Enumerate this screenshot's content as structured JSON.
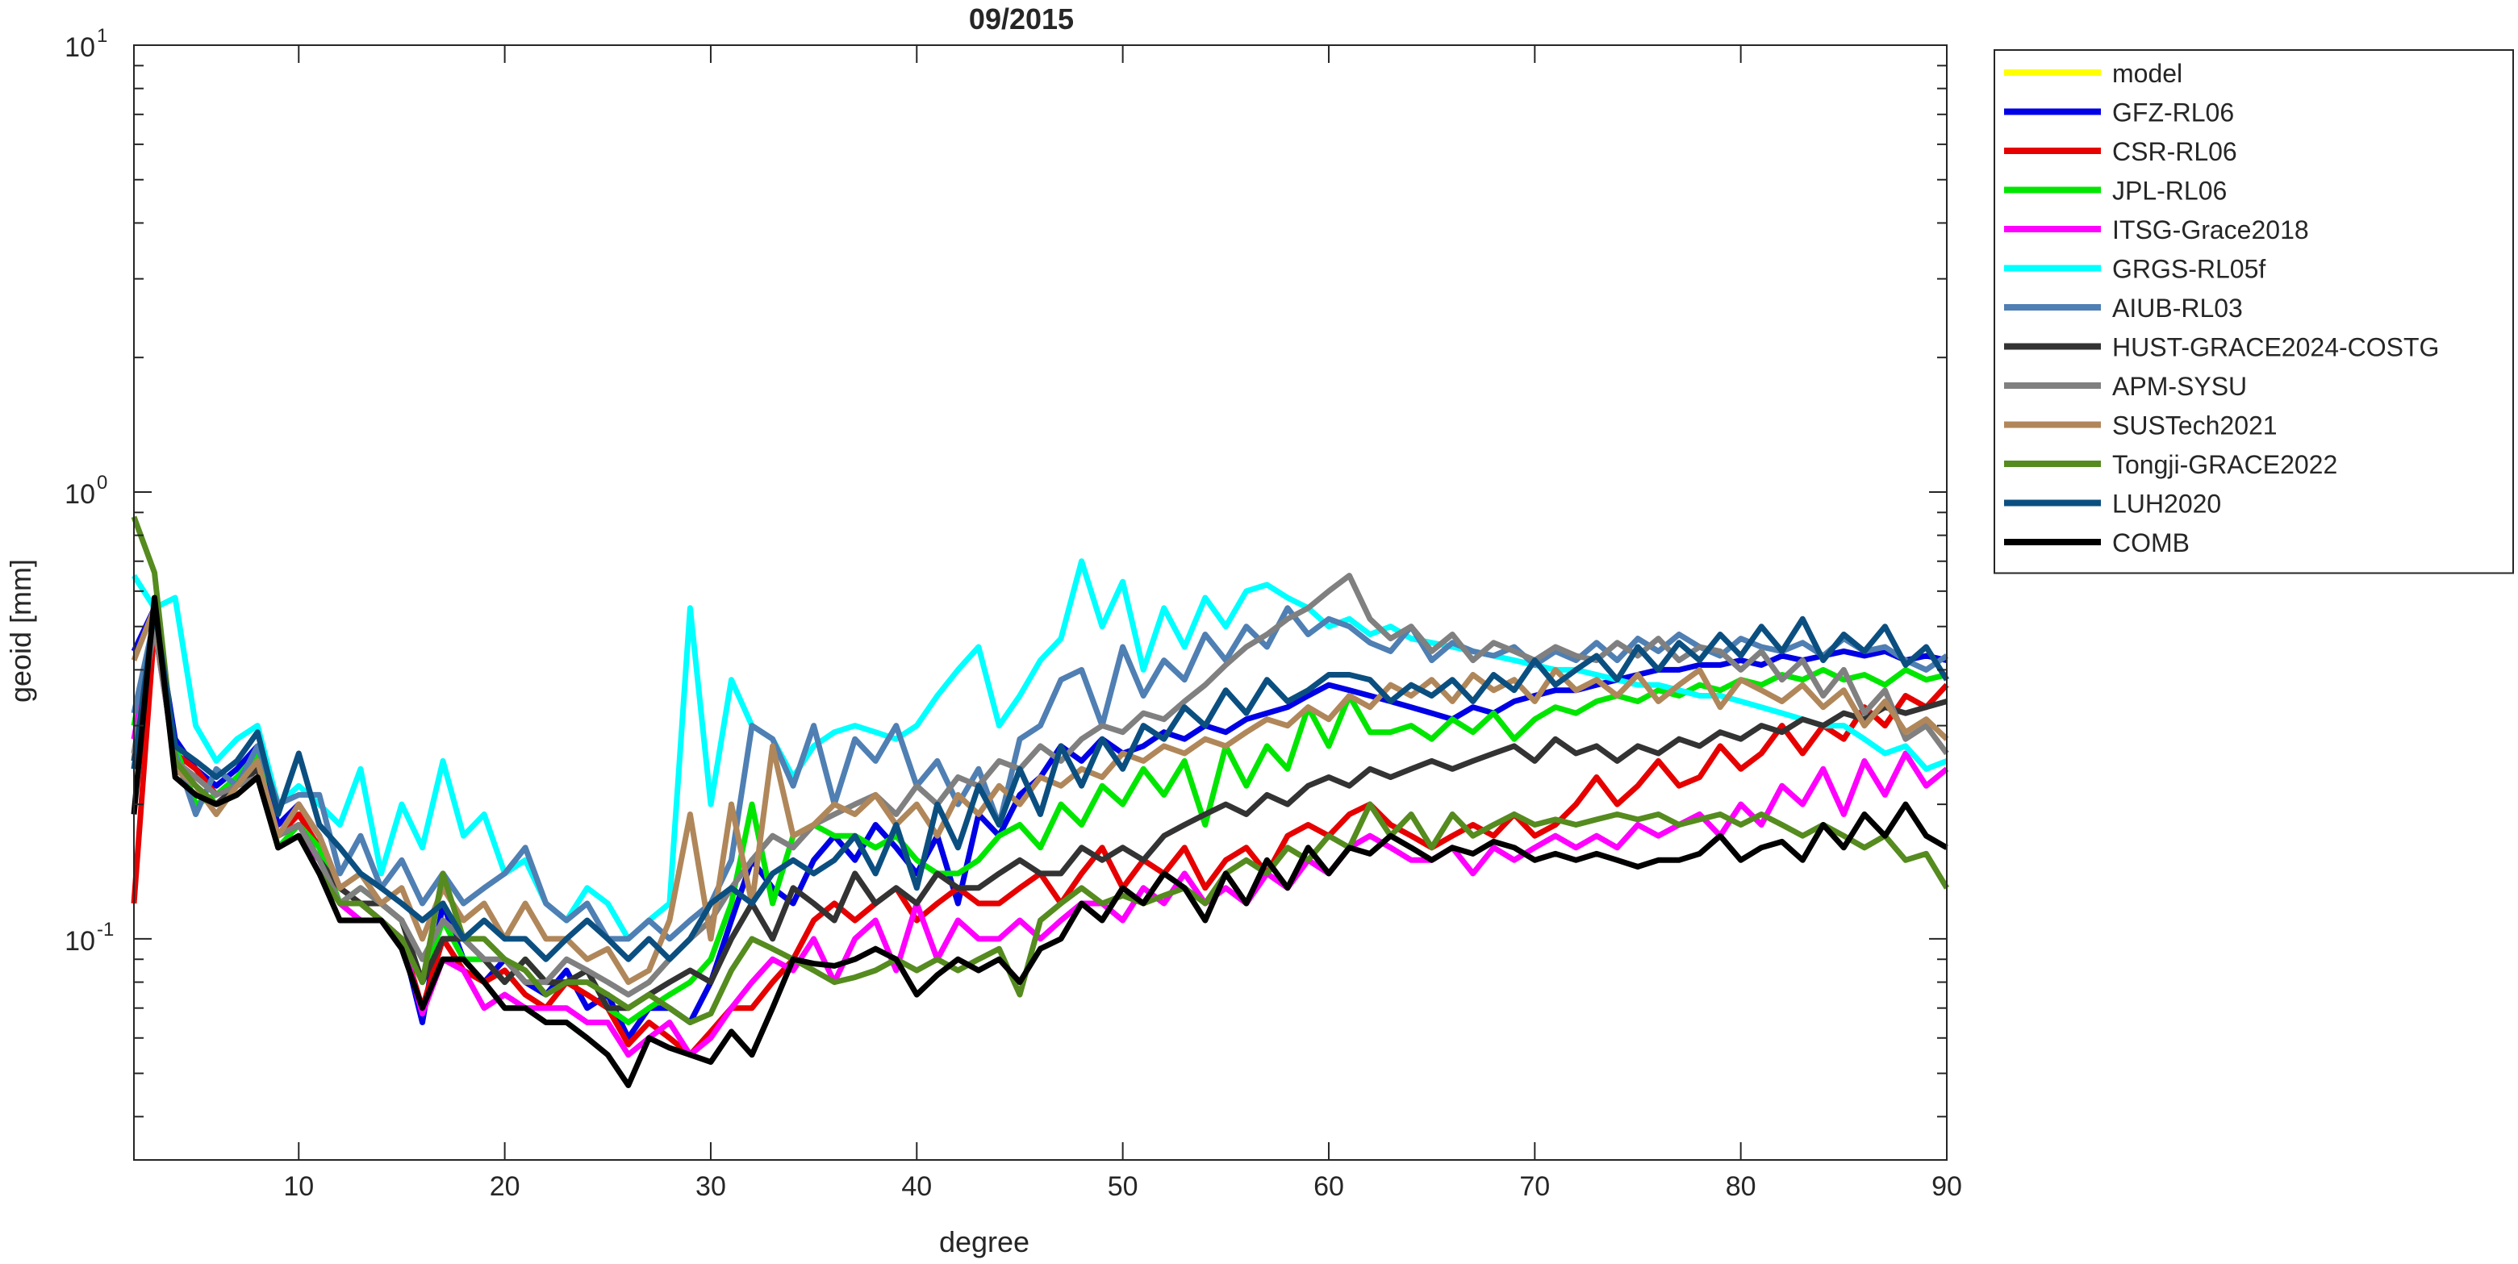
{
  "chart_data": {
    "type": "line",
    "title": "09/2015",
    "xlabel": "degree",
    "ylabel": "geoid [mm]",
    "xlim": [
      2,
      90
    ],
    "ylim": [
      0.032,
      10
    ],
    "yscale": "log",
    "xticks": [
      10,
      20,
      30,
      40,
      50,
      60,
      70,
      80,
      90
    ],
    "yticks": [
      {
        "value": 0.1,
        "base": "10",
        "exp": "-1"
      },
      {
        "value": 1,
        "base": "10",
        "exp": "0"
      },
      {
        "value": 10,
        "base": "10",
        "exp": "1"
      }
    ],
    "grid": false,
    "legend_position": "outside-right-top",
    "x_start": 2,
    "series": [
      {
        "name": "model",
        "color": "#ffff00",
        "values": []
      },
      {
        "name": "GFZ-RL06",
        "color": "#0000e6",
        "values": [
          0.44,
          0.55,
          0.28,
          0.24,
          0.22,
          0.24,
          0.27,
          0.18,
          0.2,
          0.17,
          0.13,
          0.12,
          0.11,
          0.1,
          0.065,
          0.12,
          0.09,
          0.08,
          0.09,
          0.08,
          0.075,
          0.085,
          0.07,
          0.075,
          0.06,
          0.07,
          0.07,
          0.065,
          0.08,
          0.11,
          0.15,
          0.13,
          0.12,
          0.15,
          0.17,
          0.15,
          0.18,
          0.16,
          0.14,
          0.17,
          0.12,
          0.19,
          0.17,
          0.21,
          0.23,
          0.27,
          0.25,
          0.28,
          0.26,
          0.27,
          0.29,
          0.28,
          0.3,
          0.29,
          0.31,
          0.32,
          0.33,
          0.35,
          0.37,
          0.36,
          0.35,
          0.34,
          0.33,
          0.32,
          0.31,
          0.33,
          0.32,
          0.34,
          0.35,
          0.36,
          0.36,
          0.37,
          0.38,
          0.39,
          0.4,
          0.4,
          0.41,
          0.41,
          0.42,
          0.41,
          0.43,
          0.42,
          0.43,
          0.44,
          0.43,
          0.44,
          0.42,
          0.43,
          0.42
        ]
      },
      {
        "name": "CSR-RL06",
        "color": "#e60000",
        "values": [
          0.12,
          0.5,
          0.26,
          0.24,
          0.21,
          0.23,
          0.25,
          0.17,
          0.19,
          0.16,
          0.13,
          0.12,
          0.11,
          0.1,
          0.07,
          0.1,
          0.085,
          0.08,
          0.085,
          0.075,
          0.07,
          0.08,
          0.075,
          0.07,
          0.058,
          0.065,
          0.06,
          0.055,
          0.062,
          0.07,
          0.07,
          0.08,
          0.09,
          0.11,
          0.12,
          0.11,
          0.12,
          0.13,
          0.11,
          0.12,
          0.13,
          0.12,
          0.12,
          0.13,
          0.14,
          0.12,
          0.14,
          0.16,
          0.13,
          0.15,
          0.14,
          0.16,
          0.13,
          0.15,
          0.16,
          0.14,
          0.17,
          0.18,
          0.17,
          0.19,
          0.2,
          0.18,
          0.17,
          0.16,
          0.17,
          0.18,
          0.17,
          0.19,
          0.17,
          0.18,
          0.2,
          0.23,
          0.2,
          0.22,
          0.25,
          0.22,
          0.23,
          0.27,
          0.24,
          0.26,
          0.3,
          0.26,
          0.3,
          0.28,
          0.33,
          0.3,
          0.35,
          0.33,
          0.37
        ]
      },
      {
        "name": "JPL-RL06",
        "color": "#00e600",
        "values": [
          0.3,
          0.52,
          0.27,
          0.2,
          0.21,
          0.23,
          0.26,
          0.16,
          0.18,
          0.16,
          0.12,
          0.13,
          0.12,
          0.11,
          0.08,
          0.11,
          0.09,
          0.09,
          0.08,
          0.09,
          0.08,
          0.08,
          0.085,
          0.07,
          0.065,
          0.07,
          0.075,
          0.08,
          0.09,
          0.12,
          0.2,
          0.12,
          0.17,
          0.18,
          0.17,
          0.17,
          0.16,
          0.17,
          0.15,
          0.14,
          0.14,
          0.15,
          0.17,
          0.18,
          0.16,
          0.2,
          0.18,
          0.22,
          0.2,
          0.24,
          0.21,
          0.25,
          0.18,
          0.27,
          0.22,
          0.27,
          0.24,
          0.33,
          0.27,
          0.35,
          0.29,
          0.29,
          0.3,
          0.28,
          0.31,
          0.29,
          0.32,
          0.28,
          0.31,
          0.33,
          0.32,
          0.34,
          0.35,
          0.34,
          0.36,
          0.35,
          0.37,
          0.36,
          0.38,
          0.37,
          0.39,
          0.38,
          0.4,
          0.38,
          0.39,
          0.37,
          0.4,
          0.38,
          0.39
        ]
      },
      {
        "name": "ITSG-Grace2018",
        "color": "#ff00ff",
        "values": [
          0.28,
          0.5,
          0.25,
          0.22,
          0.2,
          0.22,
          0.24,
          0.16,
          0.17,
          0.15,
          0.12,
          0.11,
          0.11,
          0.1,
          0.068,
          0.09,
          0.085,
          0.07,
          0.075,
          0.07,
          0.07,
          0.07,
          0.065,
          0.065,
          0.055,
          0.06,
          0.065,
          0.055,
          0.06,
          0.07,
          0.08,
          0.09,
          0.085,
          0.1,
          0.08,
          0.1,
          0.11,
          0.085,
          0.12,
          0.09,
          0.11,
          0.1,
          0.1,
          0.11,
          0.1,
          0.11,
          0.12,
          0.12,
          0.11,
          0.13,
          0.12,
          0.14,
          0.12,
          0.13,
          0.12,
          0.14,
          0.13,
          0.15,
          0.14,
          0.16,
          0.17,
          0.16,
          0.15,
          0.15,
          0.16,
          0.14,
          0.16,
          0.15,
          0.16,
          0.17,
          0.16,
          0.17,
          0.16,
          0.18,
          0.17,
          0.18,
          0.19,
          0.17,
          0.2,
          0.18,
          0.22,
          0.2,
          0.24,
          0.19,
          0.25,
          0.21,
          0.26,
          0.22,
          0.24
        ]
      },
      {
        "name": "GRGS-RL05f",
        "color": "#00ffff",
        "values": [
          0.65,
          0.55,
          0.58,
          0.3,
          0.25,
          0.28,
          0.3,
          0.2,
          0.22,
          0.2,
          0.18,
          0.24,
          0.14,
          0.2,
          0.16,
          0.25,
          0.17,
          0.19,
          0.14,
          0.15,
          0.12,
          0.11,
          0.13,
          0.12,
          0.1,
          0.11,
          0.12,
          0.55,
          0.2,
          0.38,
          0.3,
          0.28,
          0.23,
          0.27,
          0.29,
          0.3,
          0.29,
          0.28,
          0.3,
          0.35,
          0.4,
          0.45,
          0.3,
          0.35,
          0.42,
          0.47,
          0.7,
          0.5,
          0.63,
          0.4,
          0.55,
          0.45,
          0.58,
          0.5,
          0.6,
          0.62,
          0.58,
          0.55,
          0.5,
          0.52,
          0.48,
          0.5,
          0.47,
          0.46,
          0.45,
          0.44,
          0.43,
          0.42,
          0.41,
          0.4,
          0.4,
          0.39,
          0.38,
          0.37,
          0.37,
          0.36,
          0.35,
          0.35,
          0.34,
          0.33,
          0.32,
          0.31,
          0.3,
          0.3,
          0.28,
          0.26,
          0.27,
          0.24,
          0.25
        ]
      },
      {
        "name": "AIUB-RL03",
        "color": "#4f7fb3",
        "values": [
          0.32,
          0.52,
          0.26,
          0.19,
          0.24,
          0.22,
          0.27,
          0.2,
          0.21,
          0.21,
          0.14,
          0.17,
          0.13,
          0.15,
          0.12,
          0.14,
          0.12,
          0.13,
          0.14,
          0.16,
          0.12,
          0.11,
          0.12,
          0.1,
          0.1,
          0.11,
          0.1,
          0.11,
          0.12,
          0.15,
          0.3,
          0.28,
          0.22,
          0.3,
          0.2,
          0.28,
          0.25,
          0.3,
          0.22,
          0.25,
          0.2,
          0.24,
          0.18,
          0.28,
          0.3,
          0.38,
          0.4,
          0.3,
          0.45,
          0.35,
          0.42,
          0.38,
          0.48,
          0.42,
          0.5,
          0.45,
          0.55,
          0.48,
          0.52,
          0.5,
          0.46,
          0.44,
          0.5,
          0.42,
          0.46,
          0.44,
          0.43,
          0.45,
          0.41,
          0.44,
          0.42,
          0.46,
          0.42,
          0.47,
          0.44,
          0.48,
          0.45,
          0.43,
          0.47,
          0.45,
          0.44,
          0.46,
          0.43,
          0.47,
          0.44,
          0.45,
          0.42,
          0.4,
          0.43
        ]
      },
      {
        "name": "HUST-GRACE2024-COSTG",
        "color": "#333333",
        "values": [
          0.25,
          0.53,
          0.24,
          0.22,
          0.2,
          0.22,
          0.24,
          0.17,
          0.18,
          0.15,
          0.13,
          0.12,
          0.12,
          0.11,
          0.08,
          0.1,
          0.1,
          0.09,
          0.08,
          0.09,
          0.08,
          0.08,
          0.085,
          0.07,
          0.07,
          0.075,
          0.08,
          0.085,
          0.08,
          0.1,
          0.12,
          0.1,
          0.13,
          0.12,
          0.11,
          0.14,
          0.12,
          0.13,
          0.12,
          0.14,
          0.13,
          0.13,
          0.14,
          0.15,
          0.14,
          0.14,
          0.16,
          0.15,
          0.16,
          0.15,
          0.17,
          0.18,
          0.19,
          0.2,
          0.19,
          0.21,
          0.2,
          0.22,
          0.23,
          0.22,
          0.24,
          0.23,
          0.24,
          0.25,
          0.24,
          0.25,
          0.26,
          0.27,
          0.25,
          0.28,
          0.26,
          0.27,
          0.25,
          0.27,
          0.26,
          0.28,
          0.27,
          0.29,
          0.28,
          0.3,
          0.29,
          0.31,
          0.3,
          0.32,
          0.31,
          0.33,
          0.32,
          0.33,
          0.34
        ]
      },
      {
        "name": "APM-SYSU",
        "color": "#808080",
        "values": [
          0.26,
          0.5,
          0.25,
          0.23,
          0.21,
          0.22,
          0.23,
          0.17,
          0.18,
          0.15,
          0.12,
          0.13,
          0.12,
          0.11,
          0.09,
          0.11,
          0.1,
          0.09,
          0.09,
          0.08,
          0.08,
          0.09,
          0.085,
          0.08,
          0.075,
          0.08,
          0.09,
          0.1,
          0.11,
          0.13,
          0.15,
          0.17,
          0.16,
          0.18,
          0.19,
          0.2,
          0.21,
          0.19,
          0.22,
          0.2,
          0.23,
          0.22,
          0.25,
          0.24,
          0.27,
          0.25,
          0.28,
          0.3,
          0.29,
          0.32,
          0.31,
          0.34,
          0.37,
          0.41,
          0.45,
          0.48,
          0.52,
          0.55,
          0.6,
          0.65,
          0.52,
          0.47,
          0.5,
          0.44,
          0.48,
          0.42,
          0.46,
          0.44,
          0.42,
          0.45,
          0.43,
          0.42,
          0.46,
          0.43,
          0.47,
          0.42,
          0.45,
          0.44,
          0.4,
          0.44,
          0.38,
          0.42,
          0.35,
          0.4,
          0.32,
          0.36,
          0.28,
          0.3,
          0.26
        ]
      },
      {
        "name": "SUSTech2021",
        "color": "#b0875a",
        "values": [
          0.42,
          0.55,
          0.24,
          0.22,
          0.19,
          0.22,
          0.25,
          0.17,
          0.2,
          0.17,
          0.13,
          0.14,
          0.12,
          0.13,
          0.1,
          0.13,
          0.11,
          0.12,
          0.1,
          0.12,
          0.1,
          0.1,
          0.09,
          0.095,
          0.08,
          0.085,
          0.11,
          0.19,
          0.1,
          0.2,
          0.12,
          0.27,
          0.17,
          0.18,
          0.2,
          0.19,
          0.21,
          0.18,
          0.2,
          0.17,
          0.21,
          0.19,
          0.22,
          0.2,
          0.23,
          0.22,
          0.24,
          0.23,
          0.26,
          0.25,
          0.27,
          0.26,
          0.28,
          0.27,
          0.29,
          0.31,
          0.3,
          0.33,
          0.31,
          0.35,
          0.33,
          0.37,
          0.35,
          0.38,
          0.34,
          0.39,
          0.36,
          0.38,
          0.34,
          0.4,
          0.36,
          0.38,
          0.35,
          0.39,
          0.34,
          0.37,
          0.4,
          0.33,
          0.38,
          0.36,
          0.34,
          0.37,
          0.33,
          0.36,
          0.3,
          0.34,
          0.29,
          0.31,
          0.28
        ]
      },
      {
        "name": "Tongji-GRACE2022",
        "color": "#558b1f",
        "values": [
          0.88,
          0.66,
          0.25,
          0.22,
          0.2,
          0.21,
          0.23,
          0.16,
          0.17,
          0.14,
          0.12,
          0.12,
          0.11,
          0.1,
          0.08,
          0.14,
          0.1,
          0.1,
          0.09,
          0.085,
          0.075,
          0.08,
          0.08,
          0.075,
          0.07,
          0.075,
          0.07,
          0.065,
          0.068,
          0.085,
          0.1,
          0.095,
          0.09,
          0.085,
          0.08,
          0.082,
          0.085,
          0.09,
          0.085,
          0.09,
          0.085,
          0.09,
          0.095,
          0.075,
          0.11,
          0.12,
          0.13,
          0.12,
          0.125,
          0.12,
          0.125,
          0.13,
          0.12,
          0.14,
          0.15,
          0.14,
          0.16,
          0.15,
          0.17,
          0.16,
          0.2,
          0.17,
          0.19,
          0.16,
          0.19,
          0.17,
          0.18,
          0.19,
          0.18,
          0.185,
          0.18,
          0.185,
          0.19,
          0.185,
          0.19,
          0.18,
          0.185,
          0.19,
          0.18,
          0.19,
          0.18,
          0.17,
          0.18,
          0.17,
          0.16,
          0.17,
          0.15,
          0.155,
          0.13
        ]
      },
      {
        "name": "LUH2020",
        "color": "#0b4f80",
        "values": [
          0.24,
          0.55,
          0.27,
          0.25,
          0.23,
          0.25,
          0.29,
          0.19,
          0.26,
          0.18,
          0.16,
          0.14,
          0.13,
          0.12,
          0.11,
          0.12,
          0.1,
          0.11,
          0.1,
          0.1,
          0.09,
          0.1,
          0.11,
          0.1,
          0.09,
          0.1,
          0.09,
          0.1,
          0.12,
          0.13,
          0.12,
          0.14,
          0.15,
          0.14,
          0.15,
          0.17,
          0.14,
          0.18,
          0.13,
          0.2,
          0.16,
          0.22,
          0.18,
          0.24,
          0.19,
          0.27,
          0.22,
          0.28,
          0.24,
          0.3,
          0.28,
          0.33,
          0.3,
          0.36,
          0.32,
          0.38,
          0.34,
          0.36,
          0.39,
          0.39,
          0.38,
          0.34,
          0.37,
          0.35,
          0.38,
          0.34,
          0.39,
          0.36,
          0.42,
          0.37,
          0.4,
          0.43,
          0.38,
          0.45,
          0.4,
          0.46,
          0.42,
          0.48,
          0.43,
          0.5,
          0.44,
          0.52,
          0.42,
          0.48,
          0.44,
          0.5,
          0.41,
          0.45,
          0.38
        ]
      },
      {
        "name": "COMB",
        "color": "#000000",
        "values": [
          0.19,
          0.58,
          0.23,
          0.21,
          0.2,
          0.21,
          0.23,
          0.16,
          0.17,
          0.14,
          0.11,
          0.11,
          0.11,
          0.095,
          0.07,
          0.09,
          0.09,
          0.08,
          0.07,
          0.07,
          0.065,
          0.065,
          0.06,
          0.055,
          0.047,
          0.06,
          0.057,
          0.055,
          0.053,
          0.062,
          0.055,
          0.07,
          0.09,
          0.088,
          0.087,
          0.09,
          0.095,
          0.09,
          0.075,
          0.083,
          0.09,
          0.085,
          0.09,
          0.08,
          0.095,
          0.1,
          0.12,
          0.11,
          0.13,
          0.12,
          0.14,
          0.13,
          0.11,
          0.14,
          0.12,
          0.15,
          0.13,
          0.16,
          0.14,
          0.16,
          0.155,
          0.17,
          0.16,
          0.15,
          0.16,
          0.155,
          0.165,
          0.16,
          0.15,
          0.155,
          0.15,
          0.155,
          0.15,
          0.145,
          0.15,
          0.15,
          0.155,
          0.17,
          0.15,
          0.16,
          0.165,
          0.15,
          0.18,
          0.16,
          0.19,
          0.17,
          0.2,
          0.17,
          0.16
        ]
      }
    ]
  }
}
